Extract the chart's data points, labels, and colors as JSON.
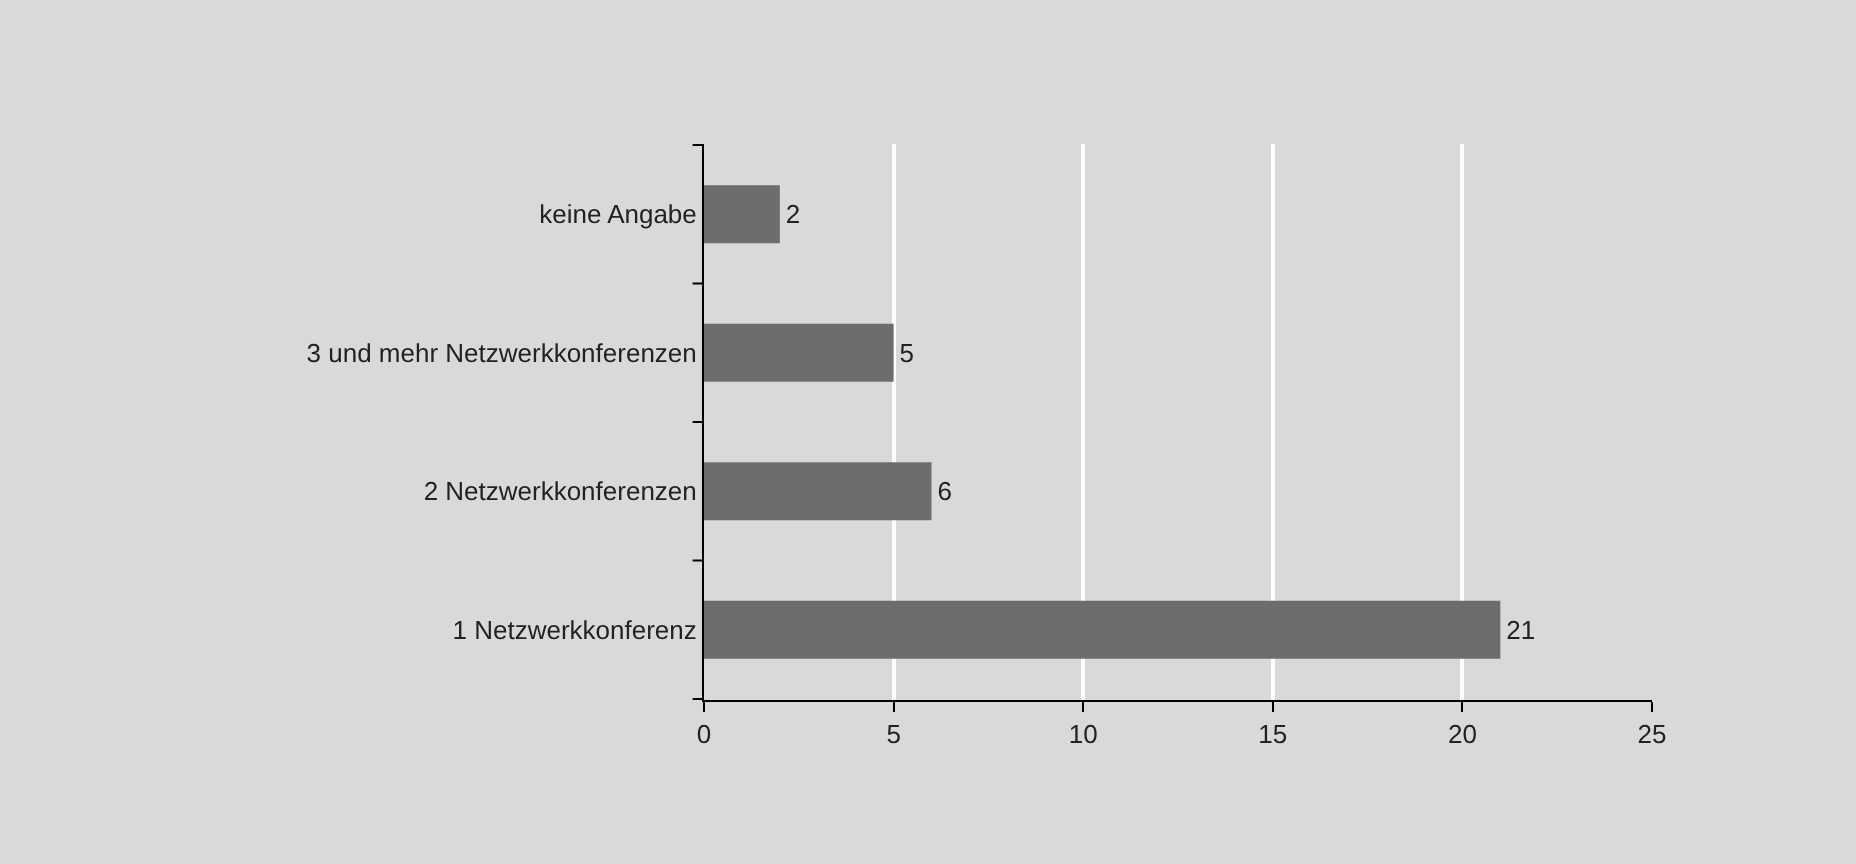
{
  "chart_data": {
    "type": "bar",
    "orientation": "horizontal",
    "categories": [
      "keine Angabe",
      "3 und mehr Netzwerkkonferenzen",
      "2 Netzwerkkonferenzen",
      "1 Netzwerkkonferenz"
    ],
    "values": [
      2,
      5,
      6,
      21
    ],
    "color": "#6d6d6d",
    "xlim": [
      0,
      25
    ],
    "xticks": [
      0,
      5,
      10,
      15,
      20,
      25
    ],
    "grid": "x",
    "data_labels": true
  }
}
